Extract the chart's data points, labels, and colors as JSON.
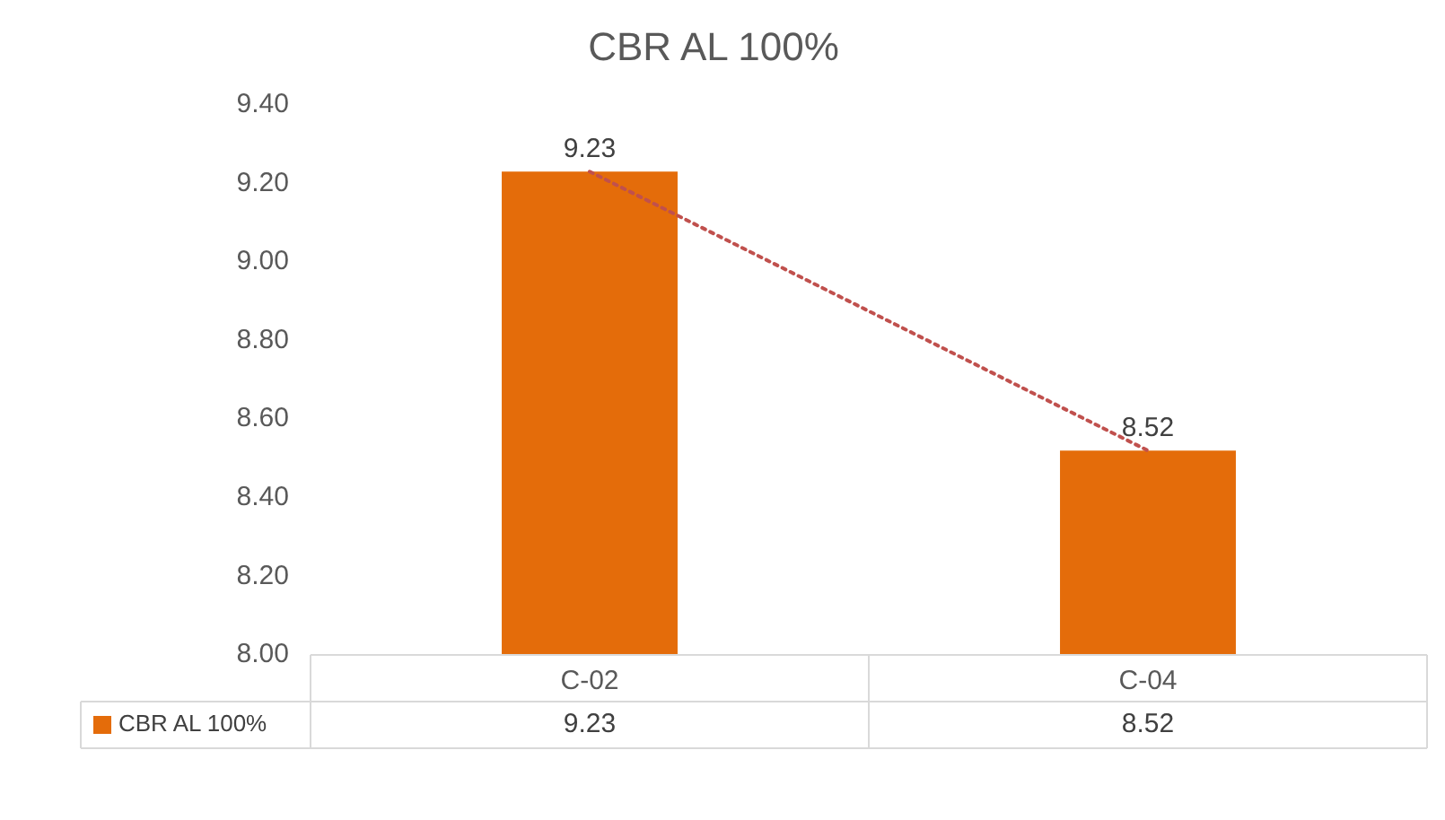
{
  "chart_data": {
    "type": "bar",
    "title": "CBR AL 100%",
    "categories": [
      "C-02",
      "C-04"
    ],
    "series": [
      {
        "name": "CBR AL 100%",
        "color": "#e46c0a",
        "values": [
          9.23,
          8.52
        ]
      },
      {
        "type": "line",
        "x": [
          "C-02",
          "C-04"
        ],
        "values": [
          9.23,
          8.52
        ],
        "color": "#c0504d",
        "line_style": "dotted"
      }
    ],
    "ylim": [
      8,
      9.4
    ],
    "yticks": [
      {
        "value": 8,
        "label": "8.00"
      },
      {
        "value": 8.2,
        "label": "8.20"
      },
      {
        "value": 8.4,
        "label": "8.40"
      },
      {
        "value": 8.6,
        "label": "8.60"
      },
      {
        "value": 8.8,
        "label": "8.80"
      },
      {
        "value": 9,
        "label": "9.00"
      },
      {
        "value": 9.2,
        "label": "9.20"
      },
      {
        "value": 9.4,
        "label": "9.40"
      }
    ],
    "data_labels": true,
    "legend": "bottom"
  }
}
